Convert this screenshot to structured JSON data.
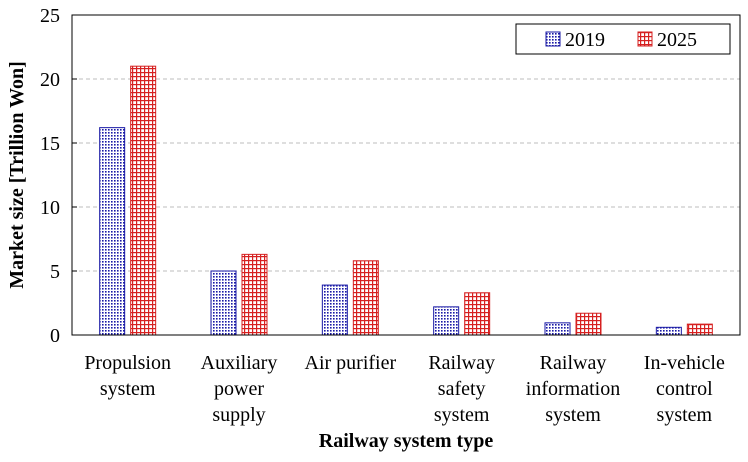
{
  "chart_data": {
    "type": "bar",
    "xlabel": "Railway system type",
    "ylabel": "Market size [Trillion Won]",
    "ylim": [
      0,
      25
    ],
    "yticks": [
      0,
      5,
      10,
      15,
      20,
      25
    ],
    "grid": "horizontal dashed",
    "legend_position": "top-right",
    "categories": [
      [
        "Propulsion",
        "system"
      ],
      [
        "Auxiliary",
        "power",
        "supply"
      ],
      [
        "Air purifier"
      ],
      [
        "Railway",
        "safety",
        "system"
      ],
      [
        "Railway",
        "information",
        "system"
      ],
      [
        "In-vehicle",
        "control",
        "system"
      ]
    ],
    "series": [
      {
        "name": "2019",
        "values": [
          16.2,
          5.0,
          3.9,
          2.2,
          0.95,
          0.6
        ],
        "color": "#1a1aa6",
        "pattern": "dots"
      },
      {
        "name": "2025",
        "values": [
          21.0,
          6.3,
          5.8,
          3.3,
          1.7,
          0.85
        ],
        "color": "#d62020",
        "pattern": "grid"
      }
    ]
  }
}
